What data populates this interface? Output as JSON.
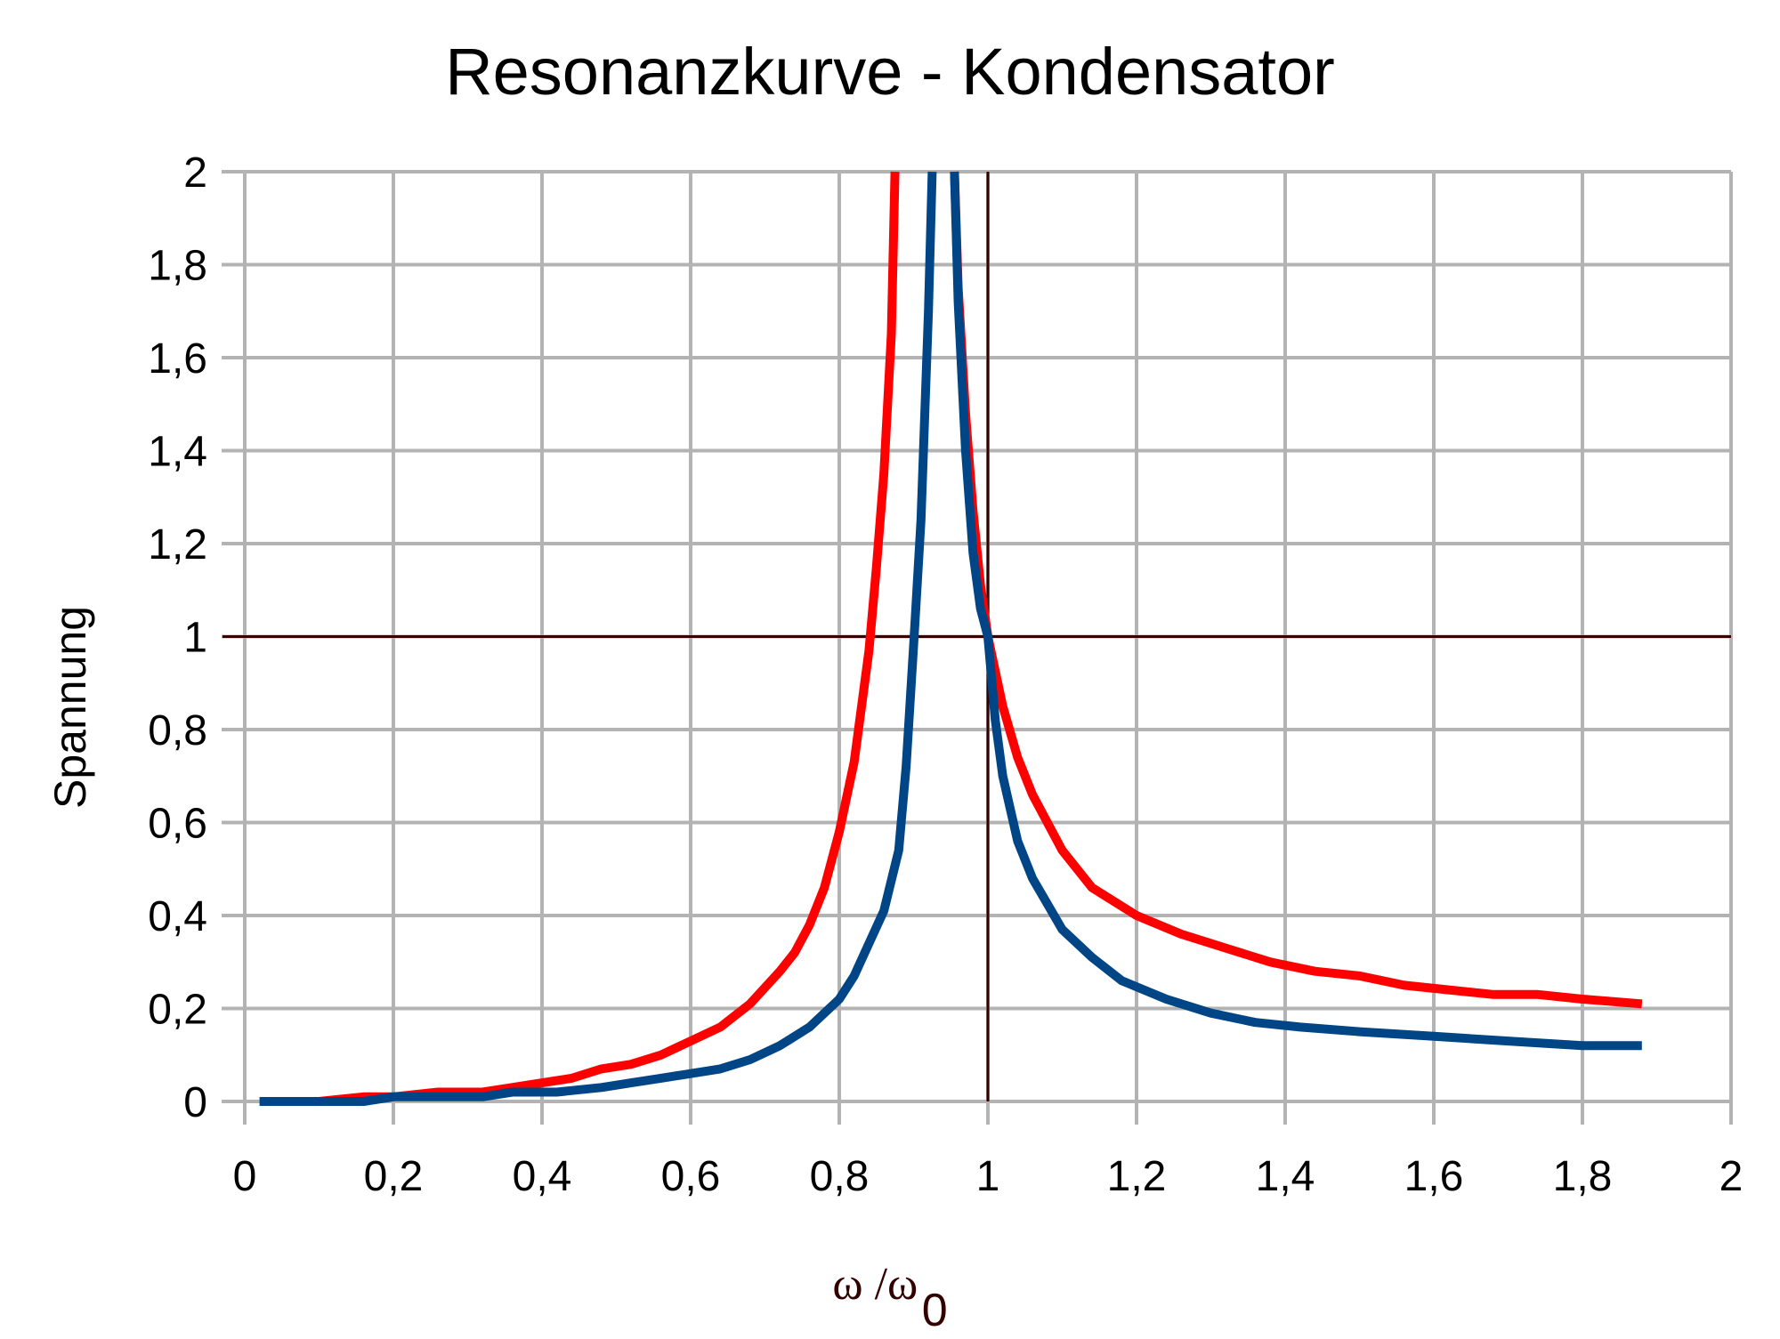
{
  "chart_data": {
    "type": "line",
    "title": "Resonanzkurve - Kondensator",
    "xlabel": {
      "main": "ω /ω",
      "sub": "0"
    },
    "ylabel": "Spannung",
    "xlim": [
      0,
      2
    ],
    "ylim": [
      0,
      2
    ],
    "xticks": [
      0,
      0.2,
      0.4,
      0.6,
      0.8,
      1,
      1.2,
      1.4,
      1.6,
      1.8,
      2
    ],
    "yticks": [
      0,
      0.2,
      0.4,
      0.6,
      0.8,
      1,
      1.2,
      1.4,
      1.6,
      1.8,
      2
    ],
    "xtick_labels": [
      "0",
      "0,2",
      "0,4",
      "0,6",
      "0,8",
      "1",
      "1,2",
      "1,4",
      "1,6",
      "1,8",
      "2"
    ],
    "ytick_labels": [
      "0",
      "0,2",
      "0,4",
      "0,6",
      "0,8",
      "1",
      "1,2",
      "1,4",
      "1,6",
      "1,8",
      "2"
    ],
    "grid": true,
    "reference_lines": [
      {
        "orientation": "horizontal",
        "value": 1,
        "color": "#330000"
      },
      {
        "orientation": "vertical",
        "value": 1,
        "color": "#330000"
      }
    ],
    "series": [
      {
        "color": "#ff0000",
        "points": [
          [
            0.02,
            0
          ],
          [
            0.1,
            0
          ],
          [
            0.16,
            0.01
          ],
          [
            0.2,
            0.01
          ],
          [
            0.26,
            0.02
          ],
          [
            0.32,
            0.02
          ],
          [
            0.36,
            0.03
          ],
          [
            0.4,
            0.04
          ],
          [
            0.44,
            0.05
          ],
          [
            0.48,
            0.07
          ],
          [
            0.52,
            0.08
          ],
          [
            0.56,
            0.1
          ],
          [
            0.6,
            0.13
          ],
          [
            0.64,
            0.16
          ],
          [
            0.68,
            0.21
          ],
          [
            0.72,
            0.28
          ],
          [
            0.74,
            0.32
          ],
          [
            0.76,
            0.38
          ],
          [
            0.78,
            0.46
          ],
          [
            0.8,
            0.58
          ],
          [
            0.82,
            0.73
          ],
          [
            0.84,
            0.97
          ],
          [
            0.85,
            1.15
          ],
          [
            0.86,
            1.35
          ],
          [
            0.87,
            1.65
          ],
          [
            0.875,
            2.0
          ],
          null,
          [
            0.955,
            2.0
          ],
          [
            0.96,
            1.75
          ],
          [
            0.97,
            1.48
          ],
          [
            0.98,
            1.27
          ],
          [
            0.99,
            1.11
          ],
          [
            1.0,
            1.0
          ],
          [
            1.02,
            0.85
          ],
          [
            1.04,
            0.74
          ],
          [
            1.06,
            0.66
          ],
          [
            1.1,
            0.54
          ],
          [
            1.14,
            0.46
          ],
          [
            1.2,
            0.4
          ],
          [
            1.26,
            0.36
          ],
          [
            1.32,
            0.33
          ],
          [
            1.38,
            0.3
          ],
          [
            1.44,
            0.28
          ],
          [
            1.5,
            0.27
          ],
          [
            1.56,
            0.25
          ],
          [
            1.62,
            0.24
          ],
          [
            1.68,
            0.23
          ],
          [
            1.74,
            0.23
          ],
          [
            1.8,
            0.22
          ],
          [
            1.88,
            0.21
          ]
        ]
      },
      {
        "color": "#004586",
        "points": [
          [
            0.02,
            0
          ],
          [
            0.1,
            0
          ],
          [
            0.16,
            0
          ],
          [
            0.2,
            0.01
          ],
          [
            0.26,
            0.01
          ],
          [
            0.32,
            0.01
          ],
          [
            0.36,
            0.02
          ],
          [
            0.42,
            0.02
          ],
          [
            0.48,
            0.03
          ],
          [
            0.52,
            0.04
          ],
          [
            0.56,
            0.05
          ],
          [
            0.6,
            0.06
          ],
          [
            0.64,
            0.07
          ],
          [
            0.68,
            0.09
          ],
          [
            0.72,
            0.12
          ],
          [
            0.76,
            0.16
          ],
          [
            0.8,
            0.22
          ],
          [
            0.82,
            0.27
          ],
          [
            0.84,
            0.34
          ],
          [
            0.86,
            0.41
          ],
          [
            0.88,
            0.54
          ],
          [
            0.89,
            0.72
          ],
          [
            0.9,
            0.98
          ],
          [
            0.91,
            1.25
          ],
          [
            0.92,
            1.7
          ],
          [
            0.925,
            2.0
          ],
          null,
          [
            0.955,
            2.0
          ],
          [
            0.96,
            1.72
          ],
          [
            0.97,
            1.4
          ],
          [
            0.98,
            1.18
          ],
          [
            0.99,
            1.06
          ],
          [
            1.0,
            1.0
          ],
          [
            1.01,
            0.82
          ],
          [
            1.02,
            0.7
          ],
          [
            1.04,
            0.56
          ],
          [
            1.06,
            0.48
          ],
          [
            1.1,
            0.37
          ],
          [
            1.14,
            0.31
          ],
          [
            1.18,
            0.26
          ],
          [
            1.24,
            0.22
          ],
          [
            1.3,
            0.19
          ],
          [
            1.36,
            0.17
          ],
          [
            1.42,
            0.16
          ],
          [
            1.5,
            0.15
          ],
          [
            1.6,
            0.14
          ],
          [
            1.7,
            0.13
          ],
          [
            1.8,
            0.12
          ],
          [
            1.88,
            0.12
          ]
        ]
      }
    ]
  }
}
